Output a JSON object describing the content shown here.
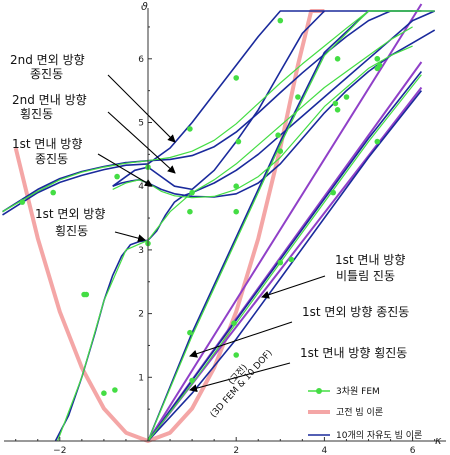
{
  "chart_data": {
    "type": "line",
    "title": "",
    "xlabel": "κ",
    "ylabel": "ϑ",
    "xlim": [
      -3.3,
      6.8
    ],
    "ylim": [
      -0.05,
      6.75
    ],
    "x_ticks": [
      "−2",
      "2",
      "4",
      "6"
    ],
    "x_tick_values": [
      -2,
      2,
      4,
      6
    ],
    "y_ticks": [
      "1",
      "2",
      "3",
      "4",
      "5",
      "6"
    ],
    "y_tick_values": [
      1,
      2,
      3,
      4,
      5,
      6
    ],
    "legend_position": "bottom-right",
    "legend": [
      {
        "label": "3차원 FEM",
        "color": "#44dd44",
        "style": "line-markers"
      },
      {
        "label": "고전 빔 이론",
        "color": "#f4a6a6",
        "style": "thick-line"
      },
      {
        "label": "10개의 자유도 빔 이론",
        "color": "#1a2a9c",
        "style": "line"
      }
    ],
    "annotations": [
      {
        "line1": "2nd  면외 방향",
        "sup": "nd",
        "line2": "종진동"
      },
      {
        "line1": "2nd  면내 방향",
        "sup": "nd",
        "line2": "횡진동"
      },
      {
        "line1": "1st  면내 방향",
        "sup": "st",
        "line2": "종진동"
      },
      {
        "line1": "1st  면외 방향",
        "sup": "st",
        "line2": "횡진동"
      },
      {
        "line1": "1st  면내 방향",
        "sup": "st",
        "line2": "비틀림 진동"
      },
      {
        "line1": "1st  면외 방향 종진동",
        "sup": "st",
        "line2": ""
      },
      {
        "line1": "1st  면내 방향 횡진동",
        "sup": "st",
        "line2": ""
      }
    ],
    "rotated_labels": [
      "(고전)",
      "(3D FEM & 10 DOF)"
    ],
    "series": [
      {
        "name": "고전 빔 이론",
        "color": "#f4a6a6",
        "x": [
          -3.0,
          -2.5,
          -2.0,
          -1.5,
          -1.0,
          -0.5,
          0.0,
          0.5,
          1.0,
          1.5,
          2.0,
          2.5,
          3.0,
          3.4,
          3.7,
          4.0
        ],
        "y": [
          4.6,
          3.18,
          2.03,
          1.15,
          0.51,
          0.13,
          0.0,
          0.13,
          0.51,
          1.15,
          2.03,
          3.18,
          4.6,
          5.9,
          6.75,
          6.75
        ]
      },
      {
        "name": "10개의 자유도 빔 이론",
        "color": "#1a2a9c",
        "curves": [
          {
            "x": [
              -3.3,
              -2.5,
              -2.0,
              -1.5,
              -1.0,
              -0.5,
              0.0,
              0.5,
              1.0,
              1.5,
              2.0,
              2.5,
              3.0,
              3.5,
              4.0,
              4.5,
              5.0,
              5.5,
              6.0,
              6.5
            ],
            "y": [
              3.6,
              3.95,
              4.12,
              4.23,
              4.31,
              4.37,
              4.4,
              4.42,
              4.48,
              4.62,
              4.85,
              5.15,
              5.47,
              5.78,
              6.07,
              6.35,
              6.6,
              6.75,
              6.75,
              6.75
            ]
          },
          {
            "x": [
              -3.3,
              -2.5,
              -2.0,
              -1.5,
              -1.0,
              -0.5,
              0.0,
              0.5,
              1.0,
              1.5,
              2.0,
              2.5,
              3.0,
              3.5,
              4.0,
              4.5,
              5.0,
              5.5,
              6.0
            ],
            "y": [
              3.55,
              3.9,
              4.06,
              4.17,
              4.26,
              4.33,
              4.35,
              4.6,
              5.0,
              5.45,
              5.9,
              6.35,
              6.75,
              6.75,
              6.75,
              6.75,
              6.75,
              6.75,
              6.75
            ]
          },
          {
            "x": [
              -0.8,
              -0.6,
              -0.4,
              -0.2,
              0.0,
              0.3,
              0.6,
              1.0,
              1.5,
              2.0,
              2.5,
              3.0,
              3.5,
              4.0,
              4.5,
              5.0,
              5.5,
              6.0,
              6.5
            ],
            "y": [
              4.0,
              4.05,
              4.08,
              4.1,
              4.05,
              3.95,
              3.88,
              3.84,
              3.83,
              3.88,
              4.05,
              4.35,
              4.75,
              5.15,
              5.5,
              5.8,
              6.05,
              6.25,
              6.45
            ]
          },
          {
            "x": [
              -0.8,
              -0.6,
              -0.3,
              0.0,
              0.3,
              0.6,
              1.0,
              1.5,
              2.0,
              2.5,
              3.0,
              3.5,
              4.0
            ],
            "y": [
              4.0,
              4.1,
              4.25,
              4.3,
              4.15,
              4.0,
              3.95,
              4.25,
              4.7,
              5.2,
              5.8,
              6.4,
              6.75
            ]
          },
          {
            "x": [
              -2.1,
              -1.8,
              -1.5,
              -1.2,
              -1.0,
              -0.8,
              -0.6,
              -0.4,
              -0.2,
              0.0,
              0.2,
              0.4,
              0.6,
              0.8,
              1.0,
              1.5,
              2.0,
              2.5,
              3.0,
              3.5,
              4.0,
              4.5,
              5.0,
              5.5,
              6.0,
              6.5
            ],
            "y": [
              0.0,
              0.4,
              1.0,
              1.7,
              2.2,
              2.6,
              2.9,
              3.08,
              3.13,
              3.15,
              3.3,
              3.55,
              3.75,
              3.85,
              3.9,
              4.05,
              4.25,
              4.5,
              4.8,
              5.1,
              5.4,
              5.7,
              6.0,
              6.3,
              6.6,
              6.75
            ]
          },
          {
            "x": [
              0.0,
              1.0,
              2.0,
              3.0,
              4.0,
              5.0,
              6.2
            ],
            "y": [
              0.0,
              1.7,
              3.2,
              4.7,
              6.1,
              6.75,
              6.75
            ]
          },
          {
            "x": [
              0.0,
              1.0,
              2.0,
              3.0,
              4.0,
              5.0,
              6.2
            ],
            "y": [
              0.0,
              0.95,
              1.9,
              2.85,
              3.8,
              4.75,
              5.8
            ]
          },
          {
            "x": [
              0.0,
              1.0,
              2.0,
              3.0,
              4.0,
              5.0,
              6.2
            ],
            "y": [
              0.0,
              0.75,
              1.6,
              2.55,
              3.5,
              4.45,
              5.5
            ]
          }
        ]
      },
      {
        "name": "3차원 FEM",
        "color": "#44dd44",
        "curves": [
          {
            "x": [
              -3.3,
              -2.5,
              -2.0,
              -1.5,
              -1.0,
              -0.5,
              0.0,
              0.5,
              1.0,
              1.5,
              2.0,
              2.5,
              3.0,
              3.5,
              4.0,
              4.5,
              5.0,
              5.5,
              6.0,
              6.5
            ],
            "y": [
              3.6,
              3.92,
              4.1,
              4.22,
              4.3,
              4.36,
              4.4,
              4.45,
              4.55,
              4.72,
              4.98,
              5.3,
              5.62,
              5.92,
              6.2,
              6.48,
              6.75,
              6.75,
              6.75,
              6.75
            ]
          },
          {
            "x": [
              -0.8,
              -0.5,
              -0.2,
              0.0,
              0.3,
              0.6,
              1.0,
              1.5,
              2.0,
              2.5,
              3.0,
              3.5,
              4.0,
              4.5,
              5.0,
              5.5,
              6.0
            ],
            "y": [
              3.95,
              4.05,
              4.1,
              4.05,
              3.92,
              3.85,
              3.82,
              3.84,
              3.95,
              4.15,
              4.45,
              4.85,
              5.25,
              5.55,
              5.85,
              6.05,
              6.2
            ]
          },
          {
            "x": [
              -2.05,
              -1.5,
              -1.0,
              -0.5,
              0.0,
              0.5,
              1.0,
              1.5,
              2.0,
              2.5,
              3.0,
              3.5,
              4.0,
              4.5,
              5.0,
              5.5,
              6.0
            ],
            "y": [
              0.0,
              1.0,
              2.2,
              3.0,
              3.15,
              3.6,
              3.9,
              4.1,
              4.35,
              4.65,
              4.95,
              5.25,
              5.55,
              5.8,
              6.05,
              6.3,
              6.5
            ]
          },
          {
            "x": [
              0.0,
              1.0,
              2.0,
              3.0,
              4.0,
              5.0,
              6.2
            ],
            "y": [
              0.0,
              1.65,
              3.15,
              4.65,
              6.05,
              6.75,
              6.75
            ]
          },
          {
            "x": [
              0.0,
              1.0,
              2.0,
              3.0,
              4.0,
              5.0,
              6.2
            ],
            "y": [
              0.0,
              0.9,
              1.85,
              2.8,
              3.75,
              4.7,
              5.75
            ]
          }
        ],
        "points": {
          "x": [
            -2.85,
            -2.15,
            -1.4,
            -0.75,
            0.0,
            0.95,
            2.0,
            3.0,
            4.25,
            5.2,
            -0.7,
            0.95,
            2.05,
            3.4,
            4.5,
            5.25,
            -1.45,
            -1.0,
            0.0,
            1.0,
            2.0,
            3.0,
            4.3,
            5.2,
            0.95,
            2.0,
            2.95,
            4.3,
            5.2,
            1.0,
            2.0,
            3.0,
            1.95,
            3.25,
            4.2,
            5.2
          ],
          "y": [
            3.75,
            3.9,
            2.3,
            0.8,
            4.3,
            4.9,
            5.7,
            6.6,
            5.3,
            6.0,
            4.15,
            3.6,
            4.7,
            5.4,
            5.4,
            5.9,
            2.3,
            0.75,
            3.1,
            3.9,
            4.0,
            4.55,
            5.2,
            6.0,
            1.7,
            3.6,
            4.8,
            6.0,
            5.85,
            0.95,
            1.35,
            2.8,
            1.85,
            2.85,
            3.9,
            4.7
          ]
        }
      }
    ]
  }
}
